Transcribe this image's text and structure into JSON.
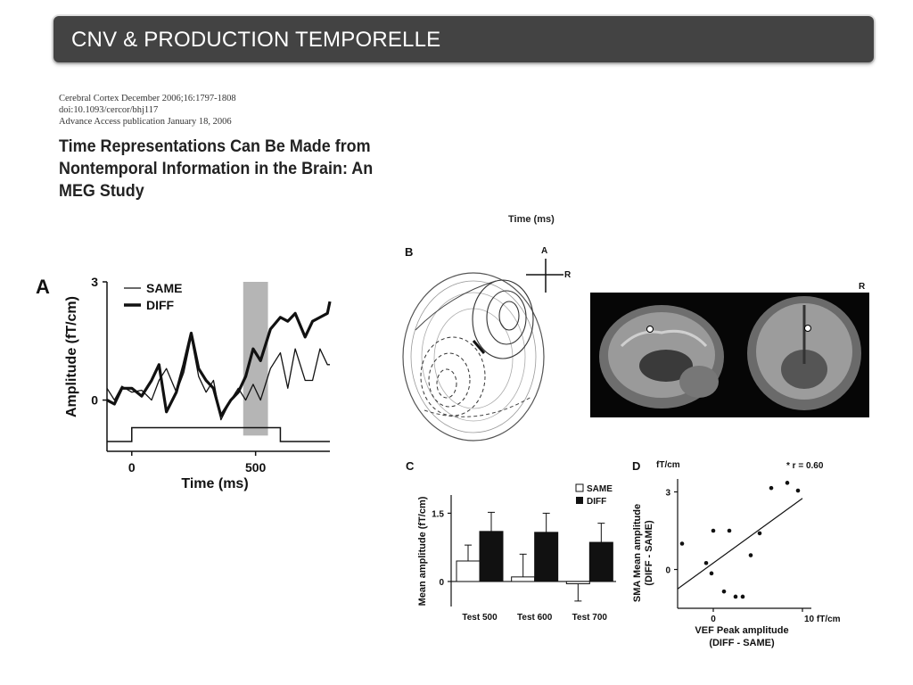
{
  "header": {
    "title": "CNV & PRODUCTION TEMPORELLE"
  },
  "citation": {
    "line1": "Cerebral Cortex December 2006;16:1797-1808",
    "line2": "doi:10.1093/cercor/bhj117",
    "line3": "Advance Access publication January 18, 2006"
  },
  "paper_title": "Time Representations Can Be Made from Nontemporal Information in the Brain: An MEG Study",
  "cut_label": "Time (ms)",
  "panelA": {
    "label": "A",
    "legend_same": "SAME",
    "legend_diff": "DIFF"
  },
  "panelB": {
    "label": "B",
    "compass_a": "A",
    "compass_r": "R",
    "mri_r": "R"
  },
  "panelC": {
    "label": "C"
  },
  "panelD": {
    "label": "D"
  },
  "chart_data": [
    {
      "type": "line",
      "xlabel": "Time (ms)",
      "ylabel": "Amplitude (fT/cm)",
      "xticks": [
        0,
        500
      ],
      "yticks": [
        0,
        3
      ],
      "xlim": [
        -100,
        800
      ],
      "ylim": [
        -1.3,
        3
      ],
      "shaded_region": [
        450,
        550
      ],
      "series": [
        {
          "name": "SAME",
          "x": [
            -100,
            -70,
            -40,
            0,
            40,
            80,
            110,
            140,
            180,
            210,
            240,
            270,
            300,
            330,
            360,
            400,
            430,
            460,
            490,
            520,
            560,
            600,
            630,
            660,
            700,
            730,
            760,
            790,
            800
          ],
          "y": [
            0.3,
            0.0,
            0.35,
            0.2,
            0.25,
            0.0,
            0.5,
            0.8,
            0.2,
            0.7,
            1.6,
            0.6,
            0.2,
            0.5,
            -0.5,
            0.0,
            0.3,
            0.0,
            0.4,
            0.0,
            0.8,
            1.2,
            0.3,
            1.3,
            0.5,
            0.5,
            1.3,
            0.9,
            0.9
          ]
        },
        {
          "name": "DIFF",
          "x": [
            -100,
            -70,
            -40,
            0,
            40,
            80,
            110,
            140,
            180,
            210,
            240,
            270,
            300,
            330,
            360,
            400,
            430,
            460,
            490,
            520,
            560,
            600,
            630,
            660,
            700,
            730,
            760,
            790,
            800
          ],
          "y": [
            0.0,
            -0.1,
            0.3,
            0.3,
            0.1,
            0.5,
            0.9,
            -0.3,
            0.2,
            0.9,
            1.7,
            0.8,
            0.5,
            0.3,
            -0.4,
            0.0,
            0.2,
            0.6,
            1.3,
            1.0,
            1.8,
            2.1,
            2.0,
            2.2,
            1.6,
            2.0,
            2.1,
            2.2,
            2.5
          ]
        }
      ],
      "stimulus_trace": {
        "x": [
          -100,
          0,
          0,
          600,
          600,
          800
        ],
        "level": [
          0,
          0,
          1,
          1,
          0,
          0
        ]
      }
    },
    {
      "type": "bar",
      "ylabel": "Mean amplitude (fT/cm)",
      "categories": [
        "Test 500",
        "Test 600",
        "Test 700"
      ],
      "yticks": [
        0,
        1.5
      ],
      "ylim": [
        -0.55,
        1.9
      ],
      "series": [
        {
          "name": "SAME",
          "values": [
            0.45,
            0.1,
            -0.05
          ],
          "errors": [
            0.35,
            0.5,
            0.38
          ]
        },
        {
          "name": "DIFF",
          "values": [
            1.1,
            1.08,
            0.86
          ],
          "errors": [
            0.42,
            0.42,
            0.42
          ]
        }
      ]
    },
    {
      "type": "scatter",
      "xlabel": "VEF Peak amplitude\n(DIFF - SAME)",
      "ylabel": "SMA Mean amplitude\n(DIFF - SAME)",
      "y_unit": "fT/cm",
      "xtick_labels": [
        "0",
        "10 fT/cm"
      ],
      "yticks": [
        0,
        3
      ],
      "xlim": [
        -4,
        11
      ],
      "ylim": [
        -1.5,
        3.5
      ],
      "annotation": "* r = 0.60",
      "points": [
        {
          "x": -3.5,
          "y": 1.0
        },
        {
          "x": -0.8,
          "y": 0.25
        },
        {
          "x": -0.2,
          "y": -0.15
        },
        {
          "x": 0,
          "y": 1.5
        },
        {
          "x": 1.2,
          "y": -0.85
        },
        {
          "x": 1.8,
          "y": 1.5
        },
        {
          "x": 2.5,
          "y": -1.05
        },
        {
          "x": 3.3,
          "y": -1.05
        },
        {
          "x": 4.2,
          "y": 0.55
        },
        {
          "x": 5.2,
          "y": 1.4
        },
        {
          "x": 6.5,
          "y": 3.15
        },
        {
          "x": 8.3,
          "y": 3.35
        },
        {
          "x": 9.5,
          "y": 3.05
        }
      ],
      "regression": {
        "x": [
          -4,
          10
        ],
        "y": [
          -0.75,
          2.75
        ]
      }
    }
  ]
}
